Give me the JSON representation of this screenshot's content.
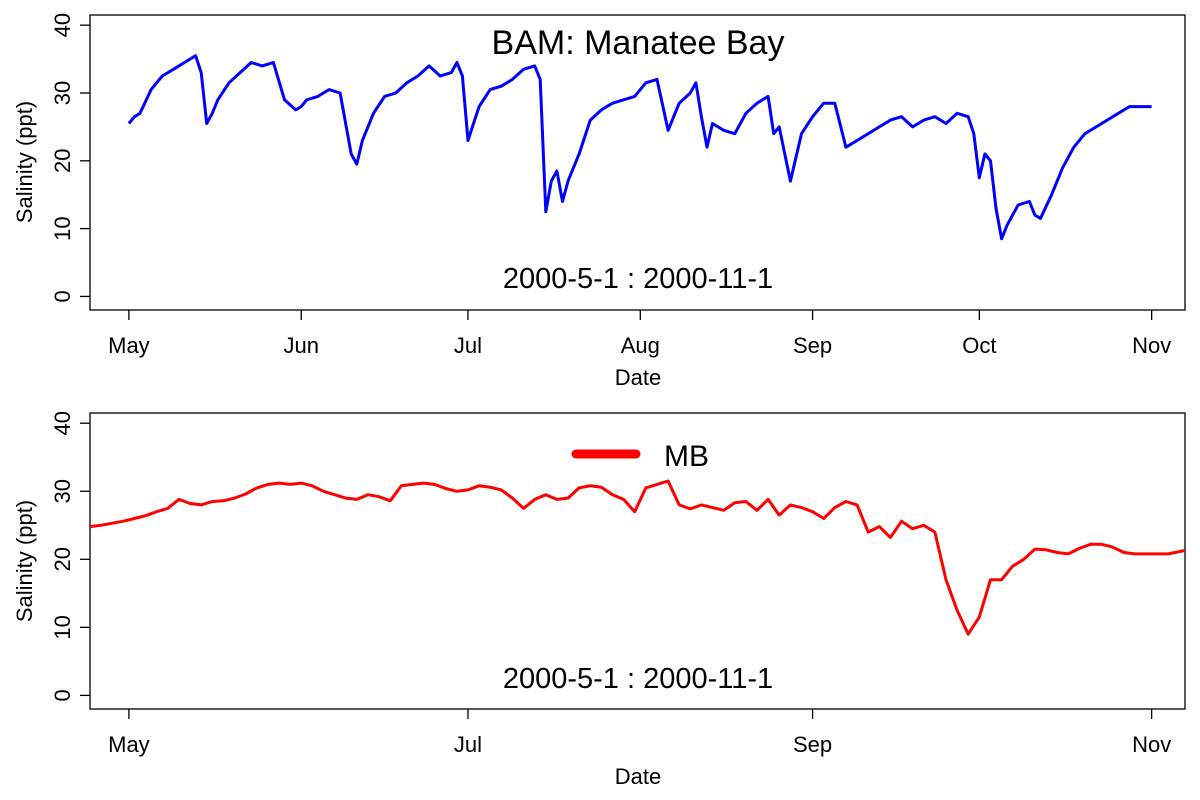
{
  "chart_data": [
    {
      "type": "line",
      "title": "BAM: Manatee Bay",
      "annotation": "2000-5-1  :  2000-11-1",
      "xlabel": "Date",
      "ylabel": "Salinity (ppt)",
      "xlim": [
        "2000-04-24",
        "2000-11-07"
      ],
      "ylim": [
        -2,
        41.5
      ],
      "x_ticks": [
        {
          "date": "2000-05-01",
          "label": "May"
        },
        {
          "date": "2000-06-01",
          "label": "Jun"
        },
        {
          "date": "2000-07-01",
          "label": "Jul"
        },
        {
          "date": "2000-08-01",
          "label": "Aug"
        },
        {
          "date": "2000-09-01",
          "label": "Sep"
        },
        {
          "date": "2000-10-01",
          "label": "Oct"
        },
        {
          "date": "2000-11-01",
          "label": "Nov"
        }
      ],
      "y_ticks": [
        0,
        10,
        20,
        30,
        40
      ],
      "grid": false,
      "series": [
        {
          "color": "#0000ff",
          "x": [
            "2000-05-01",
            "2000-05-02",
            "2000-05-03",
            "2000-05-05",
            "2000-05-07",
            "2000-05-09",
            "2000-05-11",
            "2000-05-13",
            "2000-05-14",
            "2000-05-15",
            "2000-05-16",
            "2000-05-17",
            "2000-05-19",
            "2000-05-21",
            "2000-05-23",
            "2000-05-25",
            "2000-05-27",
            "2000-05-29",
            "2000-05-31",
            "2000-06-01",
            "2000-06-02",
            "2000-06-04",
            "2000-06-06",
            "2000-06-08",
            "2000-06-10",
            "2000-06-11",
            "2000-06-12",
            "2000-06-14",
            "2000-06-16",
            "2000-06-18",
            "2000-06-20",
            "2000-06-22",
            "2000-06-24",
            "2000-06-26",
            "2000-06-28",
            "2000-06-29",
            "2000-06-30",
            "2000-07-01",
            "2000-07-02",
            "2000-07-03",
            "2000-07-05",
            "2000-07-07",
            "2000-07-09",
            "2000-07-11",
            "2000-07-13",
            "2000-07-14",
            "2000-07-15",
            "2000-07-16",
            "2000-07-17",
            "2000-07-18",
            "2000-07-19",
            "2000-07-21",
            "2000-07-23",
            "2000-07-25",
            "2000-07-27",
            "2000-07-29",
            "2000-07-31",
            "2000-08-01",
            "2000-08-02",
            "2000-08-04",
            "2000-08-06",
            "2000-08-08",
            "2000-08-10",
            "2000-08-11",
            "2000-08-12",
            "2000-08-13",
            "2000-08-14",
            "2000-08-16",
            "2000-08-18",
            "2000-08-20",
            "2000-08-22",
            "2000-08-24",
            "2000-08-25",
            "2000-08-26",
            "2000-08-28",
            "2000-08-30",
            "2000-09-01",
            "2000-09-03",
            "2000-09-05",
            "2000-09-07",
            "2000-09-09",
            "2000-09-11",
            "2000-09-13",
            "2000-09-15",
            "2000-09-17",
            "2000-09-19",
            "2000-09-21",
            "2000-09-23",
            "2000-09-25",
            "2000-09-27",
            "2000-09-29",
            "2000-09-30",
            "2000-10-01",
            "2000-10-02",
            "2000-10-03",
            "2000-10-04",
            "2000-10-05",
            "2000-10-06",
            "2000-10-08",
            "2000-10-10",
            "2000-10-11",
            "2000-10-12",
            "2000-10-14",
            "2000-10-16",
            "2000-10-18",
            "2000-10-20",
            "2000-10-22",
            "2000-10-24",
            "2000-10-26",
            "2000-10-28",
            "2000-10-30",
            "2000-11-01"
          ],
          "y": [
            25.5,
            26.5,
            27.0,
            30.5,
            32.5,
            33.5,
            34.5,
            35.5,
            33.0,
            25.5,
            27.0,
            29.0,
            31.5,
            33.0,
            34.5,
            34.0,
            34.5,
            29.0,
            27.5,
            28.0,
            29.0,
            29.5,
            30.5,
            30.0,
            21.0,
            19.5,
            23.0,
            27.0,
            29.5,
            30.0,
            31.5,
            32.5,
            34.0,
            32.5,
            33.0,
            34.5,
            32.5,
            23.0,
            25.5,
            28.0,
            30.5,
            31.0,
            32.0,
            33.5,
            34.0,
            32.0,
            12.5,
            17.0,
            18.5,
            14.0,
            17.0,
            21.0,
            26.0,
            27.5,
            28.5,
            29.0,
            29.5,
            30.5,
            31.5,
            32.0,
            24.5,
            28.5,
            30.0,
            31.5,
            26.5,
            22.0,
            25.5,
            24.5,
            24.0,
            27.0,
            28.5,
            29.5,
            24.0,
            25.0,
            17.0,
            24.0,
            26.5,
            28.5,
            28.5,
            22.0,
            23.0,
            24.0,
            25.0,
            26.0,
            26.5,
            25.0,
            26.0,
            26.5,
            25.5,
            27.0,
            26.5,
            24.0,
            17.5,
            21.0,
            20.0,
            13.0,
            8.5,
            10.5,
            13.5,
            14.0,
            12.0,
            11.5,
            15.0,
            19.0,
            22.0,
            24.0,
            25.0,
            26.0,
            27.0,
            28.0,
            28.0,
            28.0
          ]
        }
      ]
    },
    {
      "type": "line",
      "annotation": "2000-5-1  :  2000-11-1",
      "xlabel": "Date",
      "ylabel": "Salinity (ppt)",
      "xlim": [
        "2000-04-24",
        "2000-11-07"
      ],
      "ylim": [
        -2,
        41.5
      ],
      "x_ticks": [
        {
          "date": "2000-05-01",
          "label": "May"
        },
        {
          "date": "2000-07-01",
          "label": "Jul"
        },
        {
          "date": "2000-09-01",
          "label": "Sep"
        },
        {
          "date": "2000-11-01",
          "label": "Nov"
        }
      ],
      "y_ticks": [
        0,
        10,
        20,
        30,
        40
      ],
      "grid": false,
      "legend": {
        "position": "top-center",
        "entries": [
          {
            "label": "MB",
            "color": "#ff0000"
          }
        ]
      },
      "series": [
        {
          "name": "MB",
          "color": "#ff0000",
          "x": [
            "2000-04-24",
            "2000-04-26",
            "2000-04-28",
            "2000-04-30",
            "2000-05-02",
            "2000-05-04",
            "2000-05-06",
            "2000-05-08",
            "2000-05-10",
            "2000-05-12",
            "2000-05-14",
            "2000-05-16",
            "2000-05-18",
            "2000-05-20",
            "2000-05-22",
            "2000-05-24",
            "2000-05-26",
            "2000-05-28",
            "2000-05-30",
            "2000-06-01",
            "2000-06-03",
            "2000-06-05",
            "2000-06-07",
            "2000-06-09",
            "2000-06-11",
            "2000-06-13",
            "2000-06-15",
            "2000-06-17",
            "2000-06-19",
            "2000-06-21",
            "2000-06-23",
            "2000-06-25",
            "2000-06-27",
            "2000-06-29",
            "2000-07-01",
            "2000-07-03",
            "2000-07-05",
            "2000-07-07",
            "2000-07-09",
            "2000-07-11",
            "2000-07-13",
            "2000-07-15",
            "2000-07-17",
            "2000-07-19",
            "2000-07-21",
            "2000-07-23",
            "2000-07-25",
            "2000-07-27",
            "2000-07-29",
            "2000-07-31",
            "2000-08-02",
            "2000-08-04",
            "2000-08-06",
            "2000-08-08",
            "2000-08-10",
            "2000-08-12",
            "2000-08-14",
            "2000-08-16",
            "2000-08-18",
            "2000-08-20",
            "2000-08-22",
            "2000-08-24",
            "2000-08-26",
            "2000-08-28",
            "2000-08-30",
            "2000-09-01",
            "2000-09-03",
            "2000-09-05",
            "2000-09-07",
            "2000-09-09",
            "2000-09-11",
            "2000-09-13",
            "2000-09-15",
            "2000-09-17",
            "2000-09-19",
            "2000-09-21",
            "2000-09-23",
            "2000-09-25",
            "2000-09-27",
            "2000-09-29",
            "2000-10-01",
            "2000-10-03",
            "2000-10-05",
            "2000-10-07",
            "2000-10-09",
            "2000-10-11",
            "2000-10-13",
            "2000-10-15",
            "2000-10-17",
            "2000-10-19",
            "2000-10-21",
            "2000-10-23",
            "2000-10-25",
            "2000-10-27",
            "2000-10-29",
            "2000-10-31",
            "2000-11-02",
            "2000-11-04",
            "2000-11-07"
          ],
          "y": [
            24.8,
            25.0,
            25.3,
            25.6,
            26.0,
            26.4,
            27.0,
            27.5,
            28.8,
            28.2,
            28.0,
            28.5,
            28.6,
            29.0,
            29.6,
            30.5,
            31.0,
            31.2,
            31.0,
            31.2,
            30.8,
            30.0,
            29.5,
            29.0,
            28.8,
            29.5,
            29.2,
            28.6,
            30.8,
            31.0,
            31.2,
            31.0,
            30.4,
            30.0,
            30.2,
            30.8,
            30.6,
            30.2,
            29.0,
            27.5,
            28.8,
            29.5,
            28.8,
            29.0,
            30.5,
            30.8,
            30.6,
            29.5,
            28.8,
            27.0,
            30.5,
            31.0,
            31.5,
            28.0,
            27.4,
            28.0,
            27.6,
            27.2,
            28.3,
            28.5,
            27.2,
            28.8,
            26.5,
            28.0,
            27.6,
            27.0,
            26.0,
            27.6,
            28.5,
            28.0,
            24.0,
            24.8,
            23.2,
            25.6,
            24.5,
            25.0,
            24.0,
            17.0,
            12.5,
            9.0,
            11.5,
            17.0,
            17.0,
            19.0,
            20.0,
            21.5,
            21.4,
            21.0,
            20.8,
            21.6,
            22.2,
            22.2,
            21.8,
            21.0,
            20.8,
            20.8,
            20.8,
            20.8,
            21.3
          ]
        }
      ]
    }
  ]
}
